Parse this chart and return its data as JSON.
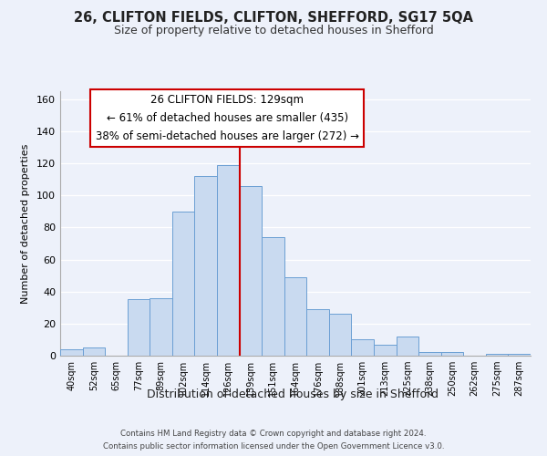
{
  "title": "26, CLIFTON FIELDS, CLIFTON, SHEFFORD, SG17 5QA",
  "subtitle": "Size of property relative to detached houses in Shefford",
  "xlabel": "Distribution of detached houses by size in Shefford",
  "ylabel": "Number of detached properties",
  "bar_color": "#c9daf0",
  "bar_edge_color": "#6b9fd4",
  "background_color": "#edf1fa",
  "grid_color": "#ffffff",
  "bin_labels": [
    "40sqm",
    "52sqm",
    "65sqm",
    "77sqm",
    "89sqm",
    "102sqm",
    "114sqm",
    "126sqm",
    "139sqm",
    "151sqm",
    "164sqm",
    "176sqm",
    "188sqm",
    "201sqm",
    "213sqm",
    "225sqm",
    "238sqm",
    "250sqm",
    "262sqm",
    "275sqm",
    "287sqm"
  ],
  "bar_heights": [
    4,
    5,
    0,
    35,
    36,
    90,
    112,
    119,
    106,
    74,
    49,
    29,
    26,
    10,
    7,
    12,
    2,
    2,
    0,
    1,
    1
  ],
  "red_line_bin_index": 7,
  "red_line_color": "#cc0000",
  "ylim": [
    0,
    165
  ],
  "yticks": [
    0,
    20,
    40,
    60,
    80,
    100,
    120,
    140,
    160
  ],
  "annotation_title": "26 CLIFTON FIELDS: 129sqm",
  "annotation_line1": "← 61% of detached houses are smaller (435)",
  "annotation_line2": "38% of semi-detached houses are larger (272) →",
  "annotation_box_facecolor": "#ffffff",
  "annotation_box_edgecolor": "#cc0000",
  "footer_line1": "Contains HM Land Registry data © Crown copyright and database right 2024.",
  "footer_line2": "Contains public sector information licensed under the Open Government Licence v3.0."
}
